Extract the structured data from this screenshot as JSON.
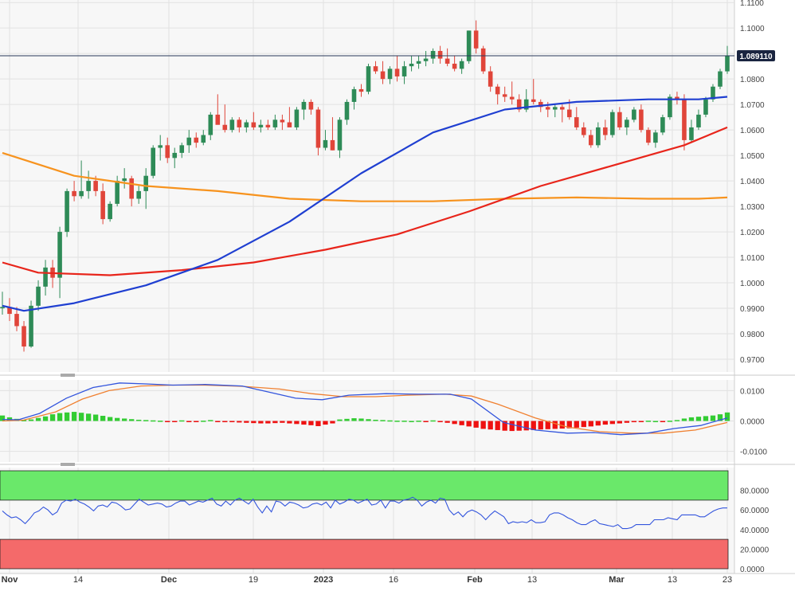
{
  "chart_data": [
    {
      "type": "candlestick",
      "title": "",
      "y_ticks": [
        "1.1100",
        "1.1000",
        "1.0900",
        "1.0800",
        "1.0700",
        "1.0600",
        "1.0500",
        "1.0400",
        "1.0300",
        "1.0200",
        "1.0100",
        "1.0000",
        "0.9900",
        "0.9800",
        "0.9700"
      ],
      "ylim": [
        0.965,
        1.111
      ],
      "last_price": "1.089110",
      "grid": true,
      "series": [
        {
          "name": "",
          "kind": "candles",
          "color_up": "#2e8b57",
          "color_down": "#e0453a"
        },
        {
          "name": "",
          "kind": "moving_average",
          "color": "#1f3fd1"
        },
        {
          "name": "",
          "kind": "moving_average",
          "color": "#e8251b"
        },
        {
          "name": "",
          "kind": "moving_average",
          "color": "#f7931e"
        }
      ],
      "ohlc": [
        [
          0.99,
          0.9965,
          0.9875,
          0.9905
        ],
        [
          0.9905,
          0.994,
          0.985,
          0.9878
        ],
        [
          0.9878,
          0.9905,
          0.981,
          0.983
        ],
        [
          0.983,
          0.985,
          0.973,
          0.975
        ],
        [
          0.975,
          0.993,
          0.9745,
          0.991
        ],
        [
          0.991,
          1.001,
          0.989,
          0.9985
        ],
        [
          0.9985,
          1.009,
          0.995,
          1.006
        ],
        [
          1.006,
          1.009,
          0.998,
          1.002
        ],
        [
          1.002,
          1.022,
          0.994,
          1.02
        ],
        [
          1.02,
          1.037,
          1.018,
          1.036
        ],
        [
          1.036,
          1.04,
          1.032,
          1.034
        ],
        [
          1.034,
          1.048,
          1.033,
          1.036
        ],
        [
          1.036,
          1.044,
          1.033,
          1.04
        ],
        [
          1.04,
          1.042,
          1.034,
          1.036
        ],
        [
          1.036,
          1.039,
          1.023,
          1.025
        ],
        [
          1.025,
          1.032,
          1.024,
          1.031
        ],
        [
          1.031,
          1.042,
          1.03,
          1.04
        ],
        [
          1.04,
          1.045,
          1.037,
          1.041
        ],
        [
          1.041,
          1.042,
          1.03,
          1.033
        ],
        [
          1.033,
          1.038,
          1.031,
          1.036
        ],
        [
          1.036,
          1.045,
          1.029,
          1.042
        ],
        [
          1.042,
          1.054,
          1.041,
          1.053
        ],
        [
          1.053,
          1.058,
          1.048,
          1.054
        ],
        [
          1.054,
          1.057,
          1.047,
          1.049
        ],
        [
          1.049,
          1.053,
          1.045,
          1.051
        ],
        [
          1.051,
          1.055,
          1.049,
          1.054
        ],
        [
          1.054,
          1.06,
          1.051,
          1.057
        ],
        [
          1.057,
          1.059,
          1.053,
          1.055
        ],
        [
          1.055,
          1.06,
          1.054,
          1.058
        ],
        [
          1.058,
          1.067,
          1.056,
          1.066
        ],
        [
          1.066,
          1.074,
          1.063,
          1.062
        ],
        [
          1.062,
          1.07,
          1.059,
          1.06
        ],
        [
          1.06,
          1.065,
          1.059,
          1.064
        ],
        [
          1.064,
          1.065,
          1.059,
          1.061
        ],
        [
          1.061,
          1.064,
          1.059,
          1.063
        ],
        [
          1.063,
          1.067,
          1.06,
          1.061
        ],
        [
          1.061,
          1.064,
          1.059,
          1.062
        ],
        [
          1.062,
          1.064,
          1.06,
          1.061
        ],
        [
          1.061,
          1.066,
          1.06,
          1.064
        ],
        [
          1.064,
          1.066,
          1.06,
          1.063
        ],
        [
          1.063,
          1.069,
          1.062,
          1.061
        ],
        [
          1.061,
          1.069,
          1.06,
          1.068
        ],
        [
          1.068,
          1.072,
          1.064,
          1.071
        ],
        [
          1.071,
          1.072,
          1.066,
          1.068
        ],
        [
          1.068,
          1.069,
          1.05,
          1.053
        ],
        [
          1.053,
          1.06,
          1.052,
          1.056
        ],
        [
          1.056,
          1.065,
          1.052,
          1.052
        ],
        [
          1.052,
          1.065,
          1.049,
          1.064
        ],
        [
          1.064,
          1.072,
          1.062,
          1.071
        ],
        [
          1.071,
          1.077,
          1.068,
          1.076
        ],
        [
          1.076,
          1.078,
          1.073,
          1.075
        ],
        [
          1.075,
          1.086,
          1.074,
          1.085
        ],
        [
          1.085,
          1.087,
          1.082,
          1.083
        ],
        [
          1.083,
          1.087,
          1.078,
          1.08
        ],
        [
          1.08,
          1.085,
          1.078,
          1.084
        ],
        [
          1.084,
          1.089,
          1.079,
          1.081
        ],
        [
          1.081,
          1.087,
          1.078,
          1.085
        ],
        [
          1.085,
          1.089,
          1.083,
          1.086
        ],
        [
          1.086,
          1.089,
          1.084,
          1.087
        ],
        [
          1.087,
          1.091,
          1.085,
          1.088
        ],
        [
          1.088,
          1.092,
          1.086,
          1.091
        ],
        [
          1.091,
          1.093,
          1.086,
          1.088
        ],
        [
          1.088,
          1.092,
          1.085,
          1.086
        ],
        [
          1.086,
          1.089,
          1.083,
          1.084
        ],
        [
          1.084,
          1.088,
          1.082,
          1.087
        ],
        [
          1.087,
          1.099,
          1.086,
          1.099
        ],
        [
          1.099,
          1.103,
          1.09,
          1.092
        ],
        [
          1.092,
          1.093,
          1.082,
          1.083
        ],
        [
          1.083,
          1.085,
          1.075,
          1.077
        ],
        [
          1.077,
          1.078,
          1.07,
          1.074
        ],
        [
          1.074,
          1.077,
          1.071,
          1.073
        ],
        [
          1.073,
          1.079,
          1.07,
          1.072
        ],
        [
          1.072,
          1.074,
          1.067,
          1.068
        ],
        [
          1.068,
          1.076,
          1.067,
          1.072
        ],
        [
          1.072,
          1.08,
          1.07,
          1.071
        ],
        [
          1.071,
          1.072,
          1.067,
          1.069
        ],
        [
          1.069,
          1.071,
          1.065,
          1.068
        ],
        [
          1.068,
          1.07,
          1.065,
          1.069
        ],
        [
          1.069,
          1.07,
          1.063,
          1.068
        ],
        [
          1.068,
          1.072,
          1.064,
          1.065
        ],
        [
          1.065,
          1.069,
          1.06,
          1.061
        ],
        [
          1.061,
          1.063,
          1.057,
          1.058
        ],
        [
          1.058,
          1.06,
          1.053,
          1.054
        ],
        [
          1.054,
          1.063,
          1.053,
          1.061
        ],
        [
          1.061,
          1.064,
          1.056,
          1.058
        ],
        [
          1.058,
          1.068,
          1.057,
          1.067
        ],
        [
          1.067,
          1.069,
          1.06,
          1.061
        ],
        [
          1.061,
          1.065,
          1.058,
          1.064
        ],
        [
          1.064,
          1.069,
          1.063,
          1.068
        ],
        [
          1.068,
          1.07,
          1.059,
          1.06
        ],
        [
          1.06,
          1.061,
          1.054,
          1.055
        ],
        [
          1.055,
          1.06,
          1.053,
          1.059
        ],
        [
          1.059,
          1.066,
          1.058,
          1.065
        ],
        [
          1.065,
          1.074,
          1.064,
          1.073
        ],
        [
          1.073,
          1.075,
          1.07,
          1.072
        ],
        [
          1.072,
          1.074,
          1.052,
          1.056
        ],
        [
          1.056,
          1.064,
          1.055,
          1.061
        ],
        [
          1.061,
          1.068,
          1.06,
          1.066
        ],
        [
          1.066,
          1.073,
          1.065,
          1.072
        ],
        [
          1.072,
          1.078,
          1.071,
          1.077
        ],
        [
          1.077,
          1.084,
          1.076,
          1.083
        ],
        [
          1.083,
          1.093,
          1.082,
          1.0891
        ]
      ],
      "ma_blue": [
        [
          0,
          0.991
        ],
        [
          3,
          0.989
        ],
        [
          10,
          0.992
        ],
        [
          20,
          0.999
        ],
        [
          30,
          1.009
        ],
        [
          40,
          1.024
        ],
        [
          50,
          1.043
        ],
        [
          60,
          1.059
        ],
        [
          70,
          1.068
        ],
        [
          80,
          1.071
        ],
        [
          90,
          1.072
        ],
        [
          97,
          1.072
        ],
        [
          101,
          1.073
        ]
      ],
      "ma_red": [
        [
          0,
          1.008
        ],
        [
          5,
          1.004
        ],
        [
          15,
          1.003
        ],
        [
          25,
          1.005
        ],
        [
          35,
          1.008
        ],
        [
          45,
          1.013
        ],
        [
          55,
          1.019
        ],
        [
          65,
          1.028
        ],
        [
          75,
          1.038
        ],
        [
          85,
          1.046
        ],
        [
          95,
          1.054
        ],
        [
          101,
          1.061
        ]
      ],
      "ma_orange": [
        [
          0,
          1.051
        ],
        [
          10,
          1.042
        ],
        [
          20,
          1.038
        ],
        [
          30,
          1.036
        ],
        [
          40,
          1.033
        ],
        [
          50,
          1.032
        ],
        [
          60,
          1.032
        ],
        [
          70,
          1.033
        ],
        [
          80,
          1.0335
        ],
        [
          90,
          1.033
        ],
        [
          97,
          1.033
        ],
        [
          101,
          1.0335
        ]
      ]
    },
    {
      "type": "macd",
      "title": "",
      "y_ticks": [
        "0.0100",
        "0.0000",
        "-0.0100"
      ],
      "ylim": [
        -0.0135,
        0.0135
      ],
      "series": [
        {
          "name": "",
          "kind": "histogram",
          "color_pos": "#33cc33",
          "color_neg": "#ee1111"
        },
        {
          "name": "",
          "kind": "line",
          "color": "#3355dd"
        },
        {
          "name": "",
          "kind": "line",
          "color": "#f08030"
        }
      ],
      "histogram": [
        0.0018,
        0.0012,
        0.0007,
        0.0003,
        0.0005,
        0.001,
        0.0015,
        0.0022,
        0.0026,
        0.0028,
        0.003,
        0.0027,
        0.0024,
        0.0021,
        0.0017,
        0.0013,
        0.001,
        0.0008,
        0.0006,
        0.0004,
        0.0003,
        0.0002,
        0.0001,
        -0.0002,
        -0.0003,
        0.0002,
        -0.0002,
        -0.0002,
        0.0001,
        0.0003,
        -0.0003,
        -0.0004,
        -0.0004,
        -0.0005,
        -0.0006,
        -0.0007,
        -0.0008,
        -0.0008,
        -0.0007,
        -0.0006,
        -0.0008,
        -0.001,
        -0.0012,
        -0.0014,
        -0.0017,
        -0.0012,
        -0.0008,
        0.0005,
        0.0007,
        0.0009,
        0.0008,
        0.0006,
        0.0004,
        0.0003,
        0.0002,
        0.0001,
        0.0001,
        0.0,
        0.0001,
        -0.0002,
        0.0002,
        -0.0004,
        -0.0006,
        -0.001,
        -0.0014,
        -0.0018,
        -0.0022,
        -0.0026,
        -0.0028,
        -0.003,
        -0.0032,
        -0.0033,
        -0.0032,
        -0.0031,
        -0.003,
        -0.0028,
        -0.0027,
        -0.0026,
        -0.0025,
        -0.0024,
        -0.0022,
        -0.002,
        -0.0018,
        -0.0015,
        -0.0012,
        -0.001,
        -0.0008,
        -0.0006,
        -0.0004,
        -0.0002,
        0.0001,
        0.0,
        -0.0001,
        0.0001,
        0.0003,
        0.0008,
        0.0012,
        0.0014,
        0.0016,
        0.0018,
        0.0022,
        0.0028
      ],
      "macd_line": [
        [
          0,
          0.0005
        ],
        [
          3,
          0.0004
        ],
        [
          7,
          0.0025
        ],
        [
          12,
          0.0075
        ],
        [
          17,
          0.011
        ],
        [
          22,
          0.0125
        ],
        [
          27,
          0.0122
        ],
        [
          32,
          0.0118
        ],
        [
          38,
          0.012
        ],
        [
          45,
          0.0115
        ],
        [
          50,
          0.0095
        ],
        [
          55,
          0.0075
        ],
        [
          60,
          0.007
        ],
        [
          65,
          0.0085
        ],
        [
          72,
          0.009
        ],
        [
          78,
          0.0088
        ],
        [
          84,
          0.0088
        ],
        [
          88,
          0.0072
        ],
        [
          94,
          -0.0005
        ],
        [
          100,
          -0.003
        ],
        [
          106,
          -0.004
        ],
        [
          111,
          -0.0038
        ],
        [
          116,
          -0.0045
        ],
        [
          121,
          -0.004
        ],
        [
          126,
          -0.0025
        ],
        [
          131,
          -0.0015
        ],
        [
          136,
          0.001
        ]
      ],
      "signal_line": [
        [
          0,
          0.0
        ],
        [
          4,
          0.0003
        ],
        [
          10,
          0.003
        ],
        [
          15,
          0.0072
        ],
        [
          20,
          0.01
        ],
        [
          26,
          0.0115
        ],
        [
          32,
          0.0118
        ],
        [
          38,
          0.0118
        ],
        [
          45,
          0.0114
        ],
        [
          52,
          0.0105
        ],
        [
          58,
          0.009
        ],
        [
          64,
          0.008
        ],
        [
          70,
          0.008
        ],
        [
          76,
          0.0085
        ],
        [
          83,
          0.0088
        ],
        [
          88,
          0.0082
        ],
        [
          93,
          0.0055
        ],
        [
          100,
          0.001
        ],
        [
          106,
          -0.002
        ],
        [
          112,
          -0.0035
        ],
        [
          118,
          -0.004
        ],
        [
          124,
          -0.004
        ],
        [
          130,
          -0.003
        ],
        [
          136,
          -0.0005
        ]
      ]
    },
    {
      "type": "line",
      "title": "",
      "y_ticks": [
        "80.0000",
        "60.0000",
        "40.0000",
        "20.0000",
        "0.0000"
      ],
      "ylim": [
        0,
        100
      ],
      "overbought_zone": [
        70,
        100
      ],
      "oversold_zone": [
        0,
        30
      ],
      "series": [
        {
          "name": "",
          "color": "#3355dd"
        }
      ],
      "values": [
        59,
        55,
        52,
        53,
        50,
        46,
        51,
        57,
        59,
        63,
        60,
        55,
        58,
        67,
        70,
        69,
        71,
        68,
        66,
        63,
        59,
        64,
        65,
        63,
        68,
        67,
        64,
        60,
        61,
        66,
        71,
        68,
        65,
        66,
        67,
        66,
        63,
        64,
        67,
        69,
        69,
        65,
        67,
        69,
        68,
        70,
        72,
        66,
        64,
        69,
        65,
        70,
        72,
        69,
        66,
        71,
        63,
        57,
        64,
        58,
        69,
        68,
        64,
        68,
        67,
        65,
        62,
        63,
        66,
        67,
        65,
        68,
        62,
        70,
        66,
        68,
        71,
        70,
        67,
        69,
        71,
        65,
        66,
        70,
        62,
        69,
        69,
        67,
        70,
        71,
        73,
        70,
        64,
        68,
        70,
        67,
        72,
        71,
        60,
        55,
        58,
        53,
        58,
        60,
        58,
        55,
        50,
        55,
        59,
        56,
        53,
        46,
        48,
        47,
        48,
        47,
        50,
        47,
        47,
        48,
        55,
        57,
        57,
        55,
        52,
        50,
        47,
        45,
        45,
        48,
        50,
        46,
        45,
        44,
        43,
        45,
        41,
        41,
        42,
        45,
        45,
        45,
        45,
        50,
        50,
        50,
        52,
        51,
        50,
        55,
        55,
        55,
        55,
        53,
        53,
        56,
        59,
        61,
        62,
        62
      ],
      "x_tick_labels": [
        "Nov",
        "14",
        "Dec",
        "19",
        "2023",
        "16",
        "Feb",
        "13",
        "Mar",
        "13",
        "23"
      ]
    }
  ]
}
